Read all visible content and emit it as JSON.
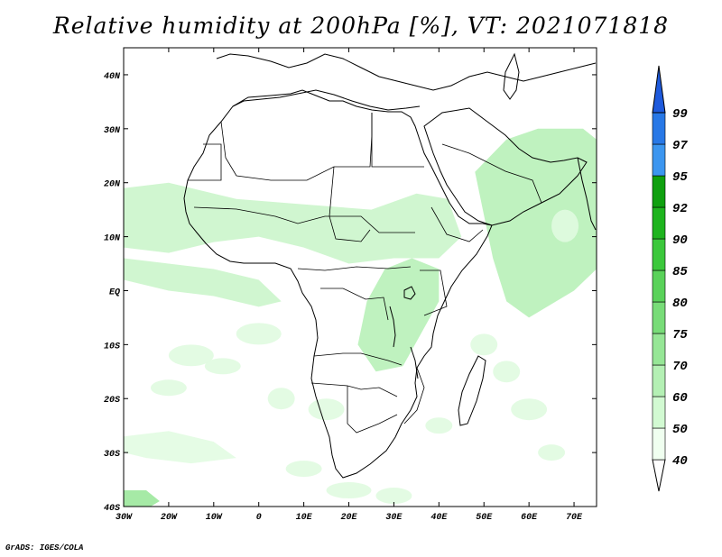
{
  "title": "Relative humidity at 200hPa [%], VT: 2021071818",
  "credit": "GrADS: IGES/COLA",
  "map": {
    "variable": "Relative humidity",
    "level": "200hPa",
    "unit": "%",
    "valid_time": "2021071818",
    "lon_range": [
      -30,
      75
    ],
    "lat_range": [
      -40,
      45
    ],
    "x_ticks": [
      "30W",
      "20W",
      "10W",
      "0",
      "10E",
      "20E",
      "30E",
      "40E",
      "50E",
      "60E",
      "70E"
    ],
    "x_tick_values": [
      -30,
      -20,
      -10,
      0,
      10,
      20,
      30,
      40,
      50,
      60,
      70
    ],
    "y_ticks": [
      "40N",
      "30N",
      "20N",
      "10N",
      "EQ",
      "10S",
      "20S",
      "30S",
      "40S"
    ],
    "y_tick_values": [
      40,
      30,
      20,
      10,
      0,
      -10,
      -20,
      -30,
      -40
    ],
    "land_outline_color": "#000000",
    "ocean_color": "#ffffff"
  },
  "colorbar": {
    "levels": [
      "40",
      "50",
      "60",
      "70",
      "75",
      "80",
      "85",
      "90",
      "92",
      "95",
      "97",
      "99"
    ],
    "colors": [
      "#f0fff0",
      "#d2fad2",
      "#b4f0b4",
      "#96e696",
      "#78dc78",
      "#5ad25a",
      "#3cc83c",
      "#1eb41e",
      "#0fa00f",
      "#3c96f0",
      "#2878e6",
      "#1e5adc"
    ],
    "bottom_color": "#ffffff",
    "top_color": "#1e5adc"
  },
  "humidity_regions": [
    {
      "name": "sahel-belt",
      "level": "60",
      "color": "#c8f5c8"
    },
    {
      "name": "arabian-sea",
      "level": "70",
      "color": "#b4f0b4"
    },
    {
      "name": "gulf-of-guinea",
      "level": "60",
      "color": "#c8f5c8"
    },
    {
      "name": "east-africa",
      "level": "70",
      "color": "#b4f0b4"
    },
    {
      "name": "south-atlantic",
      "level": "50",
      "color": "#e0fbe0"
    },
    {
      "name": "southwest-corner",
      "level": "75",
      "color": "#96e696"
    }
  ]
}
